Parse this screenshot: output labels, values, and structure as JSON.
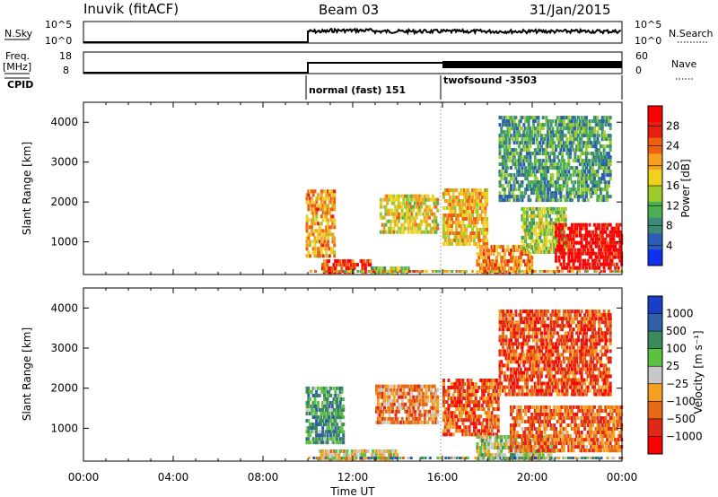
{
  "header": {
    "station": "Inuvik (fitACF)",
    "beam": "Beam 03",
    "date": "31/Jan/2015"
  },
  "panel_labels": {
    "nsky": "N.Sky",
    "nsearch": "N.Search",
    "freq_line1": "Freq.",
    "freq_line2": "[MHz]",
    "nave": "Nave",
    "cpid": "CPID",
    "nsky_ticks": [
      "10^5",
      "10^0"
    ],
    "nsearch_ticks": [
      "10^5",
      "10^0"
    ],
    "freq_ticks": [
      "18",
      "8"
    ],
    "nave_ticks": [
      "60",
      "0"
    ]
  },
  "cpid_labels": [
    "normal (fast) 151",
    "twofsound -3503"
  ],
  "colors": {
    "power_scale": [
      "#1030f0",
      "#2a5cb8",
      "#3d8a78",
      "#4caf50",
      "#9ccc2a",
      "#f0d020",
      "#f5a020",
      "#ee6010",
      "#e52010",
      "#ff0000"
    ],
    "velocity_scale": [
      "#1a3ec8",
      "#2e5fa8",
      "#3a8a5c",
      "#5cc040",
      "#c8c8c8",
      "#f5a020",
      "#e86818",
      "#e02818",
      "#ff0000"
    ]
  },
  "chart_data": [
    {
      "type": "line",
      "title": "",
      "series": [
        {
          "name": "N.Sky"
        },
        {
          "name": "N.Search"
        }
      ],
      "x_range": [
        "10:00",
        "24:00"
      ],
      "note_text": "noise levels near 10^5 between 10:00 and 24:00"
    },
    {
      "type": "line",
      "series": [
        {
          "name": "Freq."
        },
        {
          "name": "Nave"
        }
      ],
      "ylim_freq": [
        8,
        18
      ],
      "ylim_nave": [
        0,
        60
      ],
      "segments": [
        {
          "from": "10:00",
          "to": "16:00",
          "cpid": "normal (fast) 151"
        },
        {
          "from": "16:00",
          "to": "24:00",
          "cpid": "twofsound -3503"
        }
      ]
    },
    {
      "type": "heatmap",
      "ylabel": "Slant Range [km]",
      "xlabel": "Time UT",
      "x_ticks": [
        "00:00",
        "04:00",
        "08:00",
        "12:00",
        "16:00",
        "20:00",
        "00:00"
      ],
      "y_ticks": [
        1000,
        2000,
        3000,
        4000
      ],
      "ylim": [
        180,
        4500
      ],
      "xlim_hours": [
        0,
        24
      ],
      "colorbar": {
        "label": "Power [dB]",
        "ticks": [
          "28",
          "24",
          "20",
          "16",
          "12",
          "8",
          "4"
        ],
        "range": [
          0,
          30
        ]
      },
      "echo_regions": [
        {
          "t0": 9.9,
          "t1": 11.2,
          "r0": 600,
          "r1": 2300,
          "level": 0.65
        },
        {
          "t0": 10.6,
          "t1": 12.8,
          "r0": 200,
          "r1": 600,
          "level": 0.85
        },
        {
          "t0": 12.8,
          "t1": 14.5,
          "r0": 200,
          "r1": 420,
          "level": 0.4
        },
        {
          "t0": 13.2,
          "t1": 15.8,
          "r0": 1200,
          "r1": 2200,
          "level": 0.55
        },
        {
          "t0": 16.0,
          "t1": 18.0,
          "r0": 900,
          "r1": 2300,
          "level": 0.6
        },
        {
          "t0": 17.5,
          "t1": 20.0,
          "r0": 200,
          "r1": 900,
          "level": 0.7
        },
        {
          "t0": 19.5,
          "t1": 21.5,
          "r0": 700,
          "r1": 1900,
          "level": 0.45
        },
        {
          "t0": 21.0,
          "t1": 24.0,
          "r0": 300,
          "r1": 1500,
          "level": 0.95
        },
        {
          "t0": 18.5,
          "t1": 23.5,
          "r0": 2000,
          "r1": 4200,
          "level": 0.3
        }
      ]
    },
    {
      "type": "heatmap",
      "ylabel": "Slant Range [km]",
      "xlabel": "Time UT",
      "x_ticks": [
        "00:00",
        "04:00",
        "08:00",
        "12:00",
        "16:00",
        "20:00",
        "00:00"
      ],
      "y_ticks": [
        1000,
        2000,
        3000,
        4000
      ],
      "ylim": [
        180,
        4500
      ],
      "colorbar": {
        "label": "Velocity [m s⁻¹]",
        "ticks": [
          "1000",
          "500",
          "100",
          "25",
          "−25",
          "−100",
          "−500",
          "−1000"
        ],
        "range": [
          -1000,
          1000
        ]
      },
      "echo_regions": [
        {
          "t0": 9.9,
          "t1": 11.6,
          "r0": 600,
          "r1": 2000,
          "level": 0.7
        },
        {
          "t0": 10.4,
          "t1": 14.0,
          "r0": 200,
          "r1": 500,
          "level": 0.45
        },
        {
          "t0": 13.0,
          "t1": 15.8,
          "r0": 1100,
          "r1": 2100,
          "level": 0.35
        },
        {
          "t0": 16.0,
          "t1": 18.5,
          "r0": 800,
          "r1": 2200,
          "level": 0.25
        },
        {
          "t0": 17.5,
          "t1": 21.0,
          "r0": 200,
          "r1": 800,
          "level": 0.55
        },
        {
          "t0": 19.0,
          "t1": 24.0,
          "r0": 400,
          "r1": 1600,
          "level": 0.28
        },
        {
          "t0": 18.5,
          "t1": 23.5,
          "r0": 1800,
          "r1": 4000,
          "level": 0.22
        }
      ]
    }
  ]
}
